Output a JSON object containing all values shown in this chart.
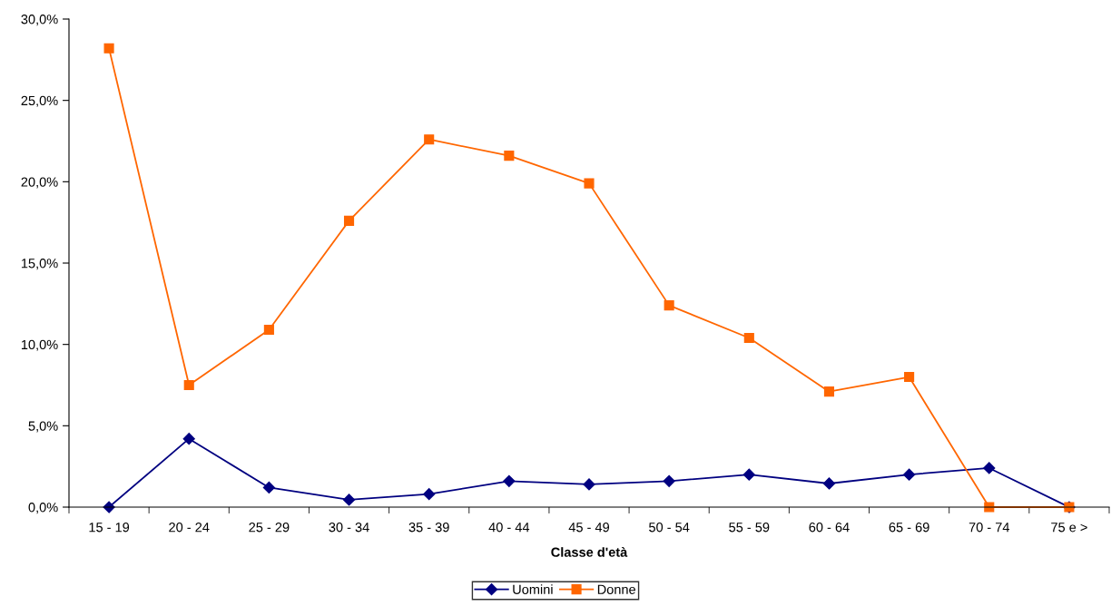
{
  "chart_data": {
    "type": "line",
    "xlabel": "Classe d'età",
    "categories": [
      "15 - 19",
      "20 - 24",
      "25 - 29",
      "30 - 34",
      "35 - 39",
      "40 - 44",
      "45 - 49",
      "50 - 54",
      "55 - 59",
      "60 - 64",
      "65 - 69",
      "70 - 74",
      "75 e >"
    ],
    "series": [
      {
        "name": "Uomini",
        "color": "#000080",
        "marker": "diamond",
        "values": [
          0,
          4.2,
          1.2,
          0.45,
          0.8,
          1.6,
          1.4,
          1.6,
          2.0,
          1.45,
          2.0,
          2.4,
          0
        ]
      },
      {
        "name": "Donne",
        "color": "#ff6600",
        "marker": "square",
        "values": [
          28.2,
          7.5,
          10.9,
          17.6,
          22.6,
          21.6,
          19.9,
          12.4,
          10.4,
          7.1,
          8.0,
          0,
          0
        ]
      }
    ],
    "ylim": [
      0,
      30
    ],
    "yticks": [
      {
        "value": 0,
        "label": "0,0%"
      },
      {
        "value": 5,
        "label": "5,0%"
      },
      {
        "value": 10,
        "label": "10,0%"
      },
      {
        "value": 15,
        "label": "15,0%"
      },
      {
        "value": 20,
        "label": "20,0%"
      },
      {
        "value": 25,
        "label": "25,0%"
      },
      {
        "value": 30,
        "label": "30,0%"
      }
    ],
    "grid": false,
    "legend": "bottom",
    "line_style": "solid"
  }
}
